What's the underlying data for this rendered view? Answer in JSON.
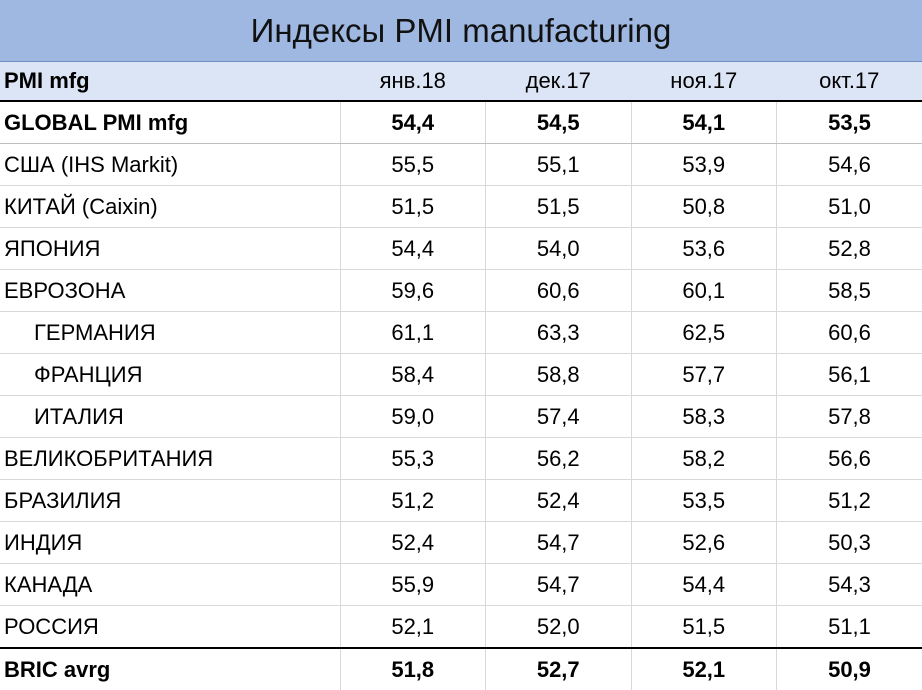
{
  "chart_data": {
    "type": "table",
    "title": "Индексы PMI manufacturing",
    "header": [
      "PMI mfg",
      "янв.18",
      "дек.17",
      "ноя.17",
      "окт.17"
    ],
    "rows": [
      {
        "label": "GLOBAL PMI mfg",
        "values": [
          "54,4",
          "54,5",
          "54,1",
          "53,5"
        ],
        "bold": true,
        "indent": false
      },
      {
        "label": "США (IHS Markit)",
        "values": [
          "55,5",
          "55,1",
          "53,9",
          "54,6"
        ],
        "bold": false,
        "indent": false
      },
      {
        "label": "КИТАЙ (Caixin)",
        "values": [
          "51,5",
          "51,5",
          "50,8",
          "51,0"
        ],
        "bold": false,
        "indent": false
      },
      {
        "label": "ЯПОНИЯ",
        "values": [
          "54,4",
          "54,0",
          "53,6",
          "52,8"
        ],
        "bold": false,
        "indent": false
      },
      {
        "label": "ЕВРОЗОНА",
        "values": [
          "59,6",
          "60,6",
          "60,1",
          "58,5"
        ],
        "bold": false,
        "indent": false
      },
      {
        "label": "ГЕРМАНИЯ",
        "values": [
          "61,1",
          "63,3",
          "62,5",
          "60,6"
        ],
        "bold": false,
        "indent": true
      },
      {
        "label": "ФРАНЦИЯ",
        "values": [
          "58,4",
          "58,8",
          "57,7",
          "56,1"
        ],
        "bold": false,
        "indent": true
      },
      {
        "label": "ИТАЛИЯ",
        "values": [
          "59,0",
          "57,4",
          "58,3",
          "57,8"
        ],
        "bold": false,
        "indent": true
      },
      {
        "label": "ВЕЛИКОБРИТАНИЯ",
        "values": [
          "55,3",
          "56,2",
          "58,2",
          "56,6"
        ],
        "bold": false,
        "indent": false
      },
      {
        "label": "БРАЗИЛИЯ",
        "values": [
          "51,2",
          "52,4",
          "53,5",
          "51,2"
        ],
        "bold": false,
        "indent": false
      },
      {
        "label": "ИНДИЯ",
        "values": [
          "52,4",
          "54,7",
          "52,6",
          "50,3"
        ],
        "bold": false,
        "indent": false
      },
      {
        "label": "КАНАДА",
        "values": [
          "55,9",
          "54,7",
          "54,4",
          "54,3"
        ],
        "bold": false,
        "indent": false
      },
      {
        "label": "РОССИЯ",
        "values": [
          "52,1",
          "52,0",
          "51,5",
          "51,1"
        ],
        "bold": false,
        "indent": false
      },
      {
        "label": "BRIC avrg",
        "values": [
          "51,8",
          "52,7",
          "52,1",
          "50,9"
        ],
        "bold": true,
        "indent": false
      }
    ]
  },
  "colors": {
    "title_bg": "#9fb8e2",
    "header_bg": "#dbe5f5"
  }
}
